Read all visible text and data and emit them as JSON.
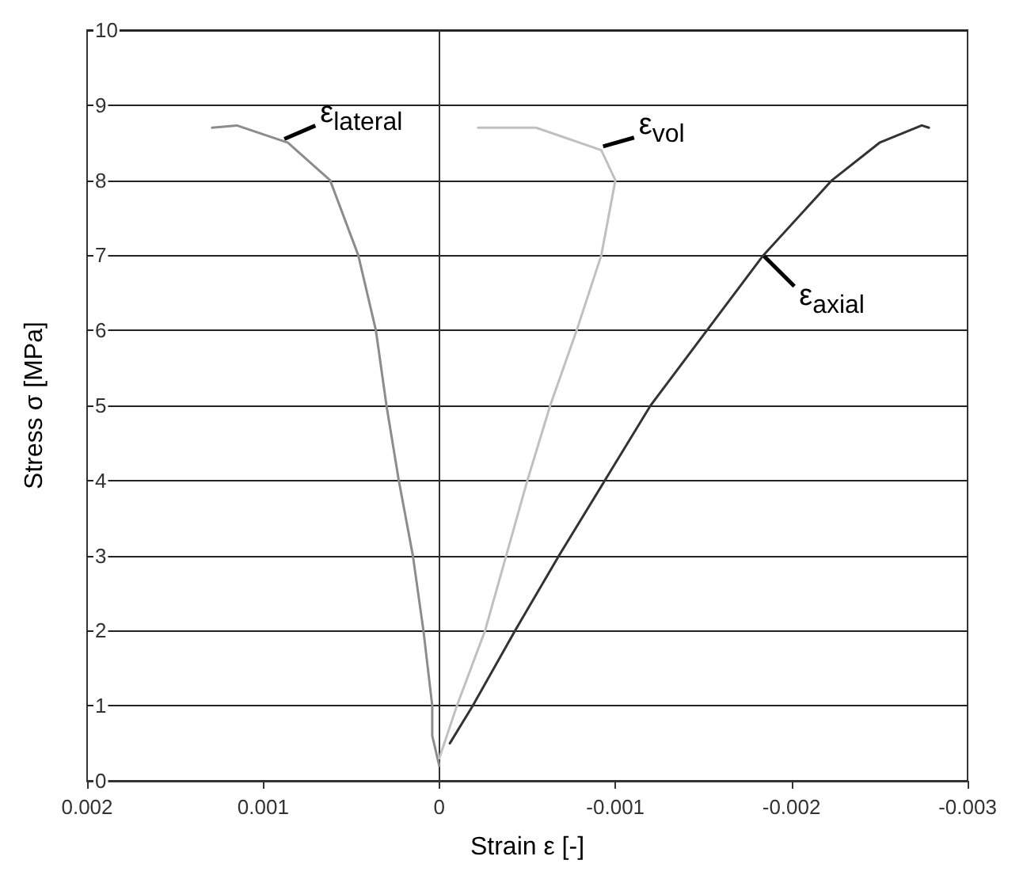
{
  "chart_data": {
    "type": "line",
    "xlabel": "Strain ε [-]",
    "ylabel": "Stress σ [MPa]",
    "xlim": [
      0.002,
      -0.003
    ],
    "xticks": [
      0.002,
      0.001,
      0,
      -0.001,
      -0.002,
      -0.003
    ],
    "ylim": [
      0,
      10
    ],
    "yticks": [
      0,
      1,
      2,
      3,
      4,
      5,
      6,
      7,
      8,
      9,
      10
    ],
    "grid": "y",
    "marker": "none",
    "line_style": "solid",
    "series": [
      {
        "color": "#8c8c8c",
        "x": [
          0,
          4e-05,
          4e-05,
          9e-05,
          0.00015,
          0.00023,
          0.0003,
          0.00036,
          0.00046,
          0.00062,
          0.00086,
          0.00115,
          0.00129
        ],
        "values": [
          0.2,
          0.6,
          1,
          2,
          3,
          4,
          5,
          6,
          7,
          8,
          8.5,
          8.73,
          8.7
        ]
      },
      {
        "color": "#c0c0c0",
        "x": [
          0,
          -0.0001,
          -0.00026,
          -0.00038,
          -0.0005,
          -0.00063,
          -0.00078,
          -0.00092,
          -0.001,
          -0.00092,
          -0.00055,
          -0.00022
        ],
        "values": [
          0.3,
          1,
          2,
          3,
          4,
          5,
          6,
          7,
          8,
          8.4,
          8.7,
          8.7
        ]
      },
      {
        "color": "#333333",
        "x": [
          -6e-05,
          -0.00019,
          -0.00043,
          -0.00068,
          -0.00094,
          -0.0012,
          -0.00152,
          -0.00184,
          -0.00223,
          -0.0025,
          -0.00274,
          -0.00278
        ],
        "values": [
          0.5,
          1,
          2,
          3,
          4,
          5,
          6,
          7,
          8,
          8.5,
          8.73,
          8.7
        ]
      }
    ],
    "annotations": [
      {
        "text": "ε$_{lateral}$",
        "x": 0.00088,
        "y": 8.55
      },
      {
        "text": "ε$_{vol}$",
        "x": -0.00093,
        "y": 8.45
      },
      {
        "text": "ε$_{axial}$",
        "x": -0.00184,
        "y": 7.0
      }
    ]
  }
}
